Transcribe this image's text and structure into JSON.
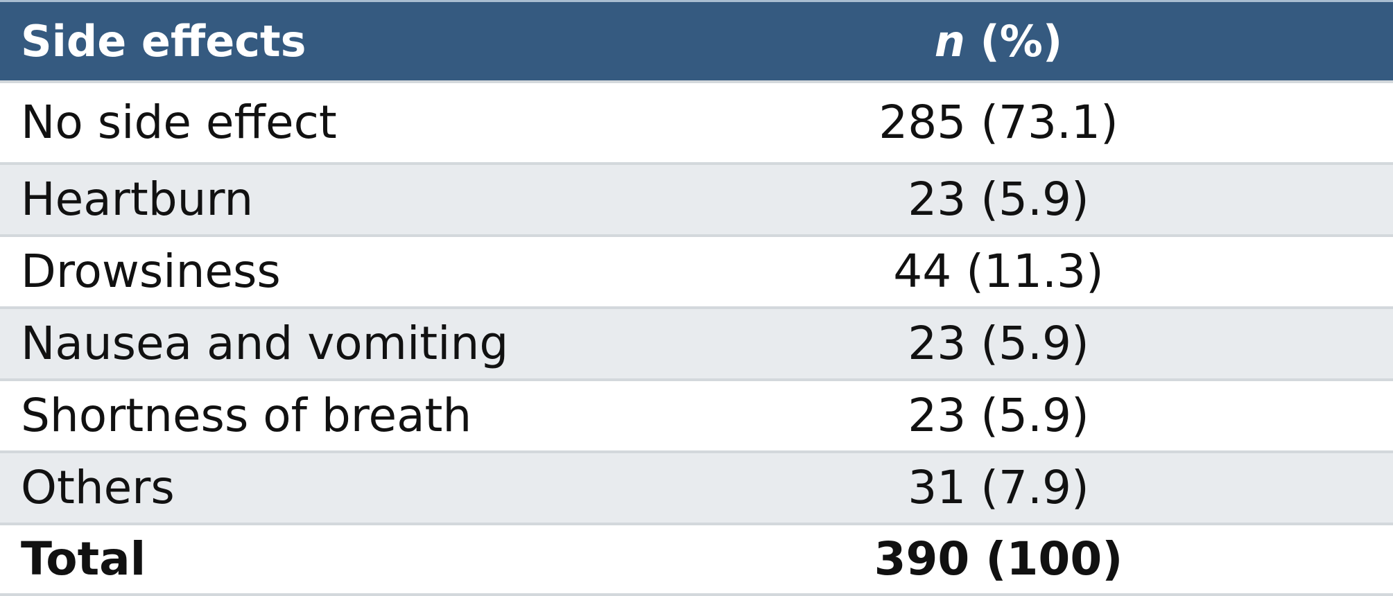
{
  "table": {
    "header": {
      "label": "Side effects",
      "value_n": "n",
      "value_rest": " (%)"
    },
    "rows": [
      {
        "label": "No side effect",
        "value": "285 (73.1)"
      },
      {
        "label": "Heartburn",
        "value": "23 (5.9)"
      },
      {
        "label": "Drowsiness",
        "value": "44 (11.3)"
      },
      {
        "label": "Nausea and vomiting",
        "value": "23 (5.9)"
      },
      {
        "label": "Shortness of breath",
        "value": "23 (5.9)"
      },
      {
        "label": "Others",
        "value": "31 (7.9)"
      }
    ],
    "total": {
      "label": "Total",
      "value": "390 (100)"
    }
  },
  "colors": {
    "header_background": "#355a80",
    "header_text": "#ffffff",
    "alt_row_background": "#e8ebee",
    "row_divider": "#d3d8dc"
  }
}
